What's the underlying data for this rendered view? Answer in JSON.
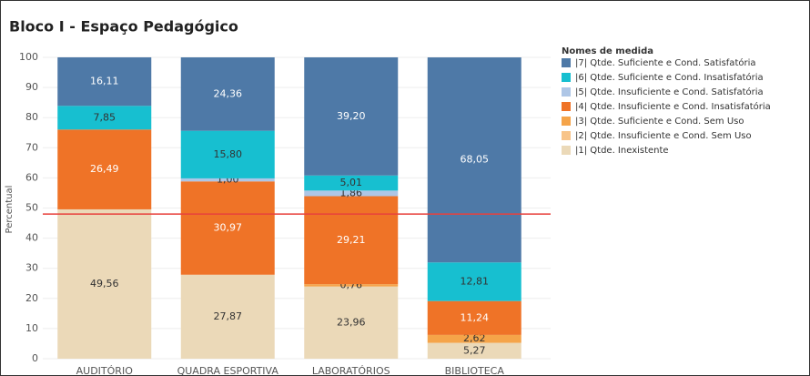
{
  "chart_data": {
    "type": "stacked_bar",
    "title": "Bloco I - Espaço Pedagógico",
    "y_label": "Percentual",
    "legend_title": "Nomes de medida",
    "categories": [
      "AUDITÓRIO",
      "QUADRA ESPORTIVA",
      "LABORATÓRIOS",
      "BIBLIOTECA"
    ],
    "series": [
      {
        "name": "|1| Qtde. Inexistente",
        "color": "#ebd9b8",
        "values": [
          49.56,
          27.87,
          23.96,
          5.27
        ],
        "value_labels": [
          "49,56",
          "27,87",
          "23,96",
          "5,27"
        ]
      },
      {
        "name": "|2| Qtde. Insuficiente e Cond. Sem Uso",
        "color": "#f8c489",
        "values": [
          null,
          null,
          null,
          null
        ],
        "value_labels": [
          null,
          null,
          null,
          null
        ]
      },
      {
        "name": "|3| Qtde. Suficiente e Cond. Sem Uso",
        "color": "#f5a449",
        "values": [
          null,
          null,
          0.76,
          2.62
        ],
        "value_labels": [
          null,
          null,
          "0,76",
          "2,62"
        ]
      },
      {
        "name": "|4| Qtde. Insuficiente e Cond. Insatisfatória",
        "color": "#ef7327",
        "values": [
          26.49,
          30.97,
          29.21,
          11.24
        ],
        "value_labels": [
          "26,49",
          "30,97",
          "29,21",
          "11,24"
        ]
      },
      {
        "name": "|5| Qtde. Insuficiente e Cond. Satisfatória",
        "color": "#aec6e6",
        "values": [
          null,
          1.0,
          1.86,
          null
        ],
        "value_labels": [
          null,
          "1,00",
          "1,86",
          null
        ]
      },
      {
        "name": "|6| Qtde. Suficiente e Cond. Insatisfatória",
        "color": "#17bfd0",
        "values": [
          7.85,
          15.8,
          5.01,
          12.81
        ],
        "value_labels": [
          "7,85",
          "15,80",
          "5,01",
          "12,81"
        ]
      },
      {
        "name": "|7| Qtde. Suficiente e Cond. Satisfatória",
        "color": "#4e79a7",
        "values": [
          16.11,
          24.36,
          39.2,
          68.05
        ],
        "value_labels": [
          "16,11",
          "24,36",
          "39,20",
          "68,05"
        ]
      }
    ],
    "ylim": [
      0,
      100
    ],
    "yticks": [
      0,
      10,
      20,
      30,
      40,
      50,
      60,
      70,
      80,
      90,
      100
    ],
    "grid": true,
    "reference_line": {
      "value": 48,
      "color": "#e8413c"
    }
  }
}
